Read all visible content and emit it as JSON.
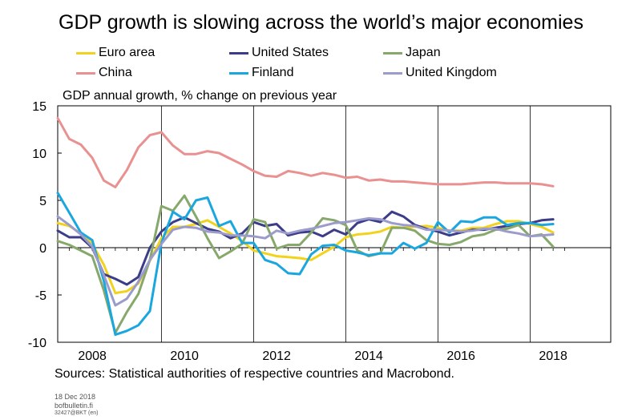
{
  "title": "GDP growth is slowing across the world’s major economies",
  "subtitle": "GDP annual growth, % change on previous year",
  "sources": "Sources: Statistical authorities of respective countries and Macrobond.",
  "meta": {
    "date": "18 Dec 2018",
    "site": "bofbulletin.fi",
    "code": "32427@BKT  (en)"
  },
  "chart_data": {
    "type": "line",
    "title": "GDP growth is slowing across the world’s major economies",
    "ylabel": "GDP annual growth, % change on previous year",
    "xlim": [
      2007.75,
      2019.75
    ],
    "ylim": [
      -10,
      15
    ],
    "yticks": [
      -10,
      -5,
      0,
      5,
      10,
      15
    ],
    "xticks": [
      2008,
      2010,
      2012,
      2014,
      2016,
      2018
    ],
    "grid": "vertical",
    "legend_position": "top",
    "x": [
      2007.75,
      2008.0,
      2008.25,
      2008.5,
      2008.75,
      2009.0,
      2009.25,
      2009.5,
      2009.75,
      2010.0,
      2010.25,
      2010.5,
      2010.75,
      2011.0,
      2011.25,
      2011.5,
      2011.75,
      2012.0,
      2012.25,
      2012.5,
      2012.75,
      2013.0,
      2013.25,
      2013.5,
      2013.75,
      2014.0,
      2014.25,
      2014.5,
      2014.75,
      2015.0,
      2015.25,
      2015.5,
      2015.75,
      2016.0,
      2016.25,
      2016.5,
      2016.75,
      2017.0,
      2017.25,
      2017.5,
      2017.75,
      2018.0,
      2018.25,
      2018.5
    ],
    "series": [
      {
        "name": "Euro area",
        "color": "#f2d31b",
        "values": [
          2.6,
          2.3,
          1.5,
          0.4,
          -1.8,
          -4.8,
          -4.6,
          -3.8,
          -1.4,
          1.0,
          2.2,
          2.2,
          2.5,
          2.9,
          2.2,
          1.5,
          0.7,
          -0.3,
          -0.6,
          -0.9,
          -1.0,
          -1.1,
          -1.3,
          -0.6,
          0.1,
          1.1,
          1.4,
          1.5,
          1.7,
          2.2,
          2.1,
          2.2,
          2.3,
          2.1,
          1.8,
          1.8,
          2.1,
          2.1,
          2.5,
          2.8,
          2.8,
          2.5,
          2.2,
          1.6
        ]
      },
      {
        "name": "United States",
        "color": "#3b3d89",
        "values": [
          1.8,
          1.1,
          1.1,
          0.0,
          -2.8,
          -3.3,
          -3.9,
          -3.1,
          0.0,
          1.7,
          2.7,
          3.2,
          2.6,
          2.0,
          1.7,
          1.0,
          1.5,
          2.7,
          2.3,
          2.5,
          1.3,
          1.6,
          1.7,
          1.2,
          1.9,
          1.4,
          2.6,
          3.0,
          2.7,
          3.8,
          3.3,
          2.4,
          2.0,
          1.7,
          1.3,
          1.6,
          1.9,
          1.9,
          2.1,
          2.3,
          2.5,
          2.6,
          2.9,
          3.0
        ]
      },
      {
        "name": "Japan",
        "color": "#86a86a",
        "values": [
          0.7,
          0.3,
          -0.3,
          -0.9,
          -4.5,
          -9.0,
          -6.8,
          -4.9,
          -1.3,
          4.4,
          3.9,
          5.5,
          3.3,
          1.0,
          -1.1,
          -0.4,
          0.4,
          3.0,
          2.7,
          -0.1,
          0.3,
          0.3,
          1.6,
          3.1,
          2.9,
          2.4,
          -0.3,
          -0.9,
          -0.6,
          2.1,
          2.1,
          1.8,
          0.8,
          0.4,
          0.3,
          0.6,
          1.2,
          1.4,
          1.9,
          2.0,
          2.4,
          1.2,
          1.4,
          0.1
        ]
      },
      {
        "name": "China",
        "color": "#e89190",
        "values": [
          13.7,
          11.5,
          10.9,
          9.5,
          7.1,
          6.4,
          8.2,
          10.6,
          11.9,
          12.2,
          10.8,
          9.9,
          9.9,
          10.2,
          10.0,
          9.4,
          8.8,
          8.1,
          7.6,
          7.5,
          8.1,
          7.9,
          7.6,
          7.9,
          7.7,
          7.4,
          7.5,
          7.1,
          7.2,
          7.0,
          7.0,
          6.9,
          6.8,
          6.7,
          6.7,
          6.7,
          6.8,
          6.9,
          6.9,
          6.8,
          6.8,
          6.8,
          6.7,
          6.5
        ]
      },
      {
        "name": "Finland",
        "color": "#1aa6df",
        "values": [
          5.8,
          3.7,
          1.6,
          0.8,
          -3.5,
          -9.2,
          -8.8,
          -8.2,
          -6.7,
          0.5,
          3.8,
          3.0,
          5.0,
          5.3,
          2.3,
          2.8,
          0.5,
          0.5,
          -1.3,
          -1.7,
          -2.7,
          -2.8,
          -0.7,
          0.2,
          0.3,
          -0.3,
          -0.5,
          -0.8,
          -0.6,
          -0.6,
          0.5,
          -0.1,
          0.5,
          2.7,
          1.6,
          2.8,
          2.7,
          3.2,
          3.2,
          2.4,
          2.6,
          2.6,
          2.4,
          2.5
        ]
      },
      {
        "name": "United Kingdom",
        "color": "#9b9bcc",
        "values": [
          3.3,
          2.4,
          1.4,
          0.1,
          -2.9,
          -6.1,
          -5.4,
          -3.6,
          -1.3,
          0.4,
          1.9,
          2.2,
          2.1,
          1.7,
          1.6,
          1.3,
          1.3,
          1.2,
          1.0,
          1.8,
          1.5,
          1.8,
          2.0,
          2.3,
          2.6,
          2.7,
          2.9,
          3.1,
          3.0,
          2.6,
          2.4,
          2.3,
          1.9,
          1.9,
          1.8,
          1.7,
          1.8,
          2.0,
          2.0,
          1.7,
          1.5,
          1.2,
          1.3,
          1.4
        ]
      }
    ]
  }
}
